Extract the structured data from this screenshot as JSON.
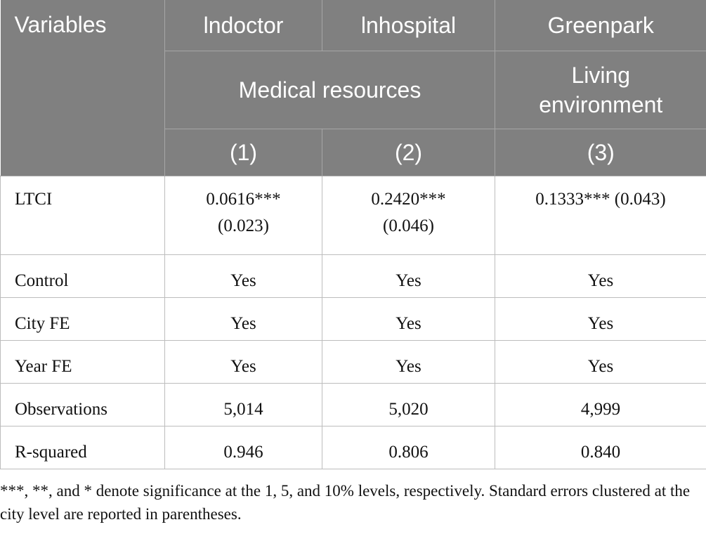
{
  "table": {
    "header": [
      [
        "Variables",
        "lndoctor",
        "lnhospital",
        "Greenpark"
      ],
      [
        "Medical resources",
        "Living environment"
      ],
      [
        "(1)",
        "(2)",
        "(3)"
      ]
    ],
    "rows": [
      [
        "LTCI",
        "0.0616*** (0.023)",
        "0.2420*** (0.046)",
        "0.1333*** (0.043)"
      ],
      [
        "Control",
        "Yes",
        "Yes",
        "Yes"
      ],
      [
        "City FE",
        "Yes",
        "Yes",
        "Yes"
      ],
      [
        "Year FE",
        "Yes",
        "Yes",
        "Yes"
      ],
      [
        "Observations",
        "5,014",
        "5,020",
        "4,999"
      ],
      [
        "R-squared",
        "0.946",
        "0.806",
        "0.840"
      ]
    ]
  },
  "footnote": "***, **, and * denote significance at the 1, 5, and 10% levels, respectively. Standard errors clustered at the city level are reported in parentheses."
}
